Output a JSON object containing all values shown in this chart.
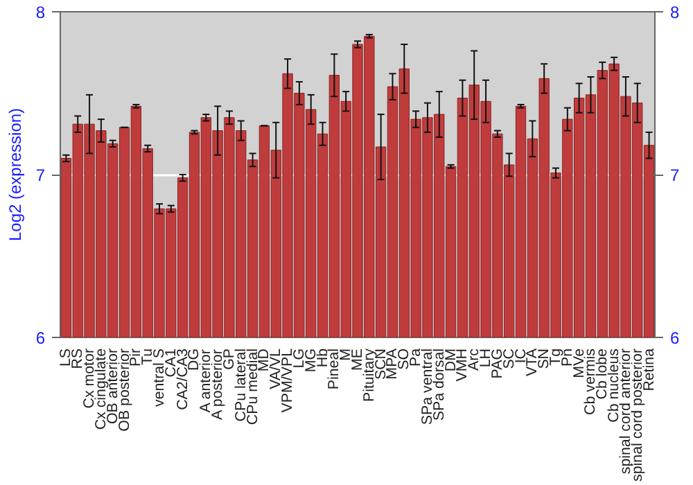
{
  "chart_data": {
    "type": "bar",
    "ylabel": "Log2 (expression)",
    "categories": [
      "LS",
      "RS",
      "Cx motor",
      "Cx cingulate",
      "OB anterior",
      "OB posterior",
      "Pir",
      "Tu",
      "ventral S",
      "CA1",
      "CA2/CA3",
      "DG",
      "A anterior",
      "A posterior",
      "GP",
      "CPu lateral",
      "CPu medial",
      "MD",
      "VA/VL",
      "VPM/VPL",
      "LG",
      "MG",
      "Hb",
      "Pineal",
      "M",
      "ME",
      "Pituitary",
      "SCN",
      "MPA",
      "SO",
      "Pa",
      "SPa ventral",
      "SPa dorsal",
      "DM",
      "VMH",
      "Arc",
      "LH",
      "PAG",
      "SC",
      "IC",
      "VTA",
      "SN",
      "Tg",
      "Pn",
      "MVe",
      "Cb vermis",
      "Cb lobe",
      "Cb nucleus",
      "spinal cord anterior",
      "spinal cord posterior",
      "Retina"
    ],
    "values": [
      7.1,
      7.31,
      7.31,
      7.27,
      7.19,
      7.29,
      7.42,
      7.16,
      6.79,
      6.79,
      6.98,
      7.26,
      7.35,
      7.27,
      7.35,
      7.27,
      7.09,
      7.3,
      7.15,
      7.62,
      7.5,
      7.4,
      7.25,
      7.61,
      7.45,
      7.8,
      7.85,
      7.17,
      7.54,
      7.65,
      7.34,
      7.35,
      7.37,
      7.05,
      7.47,
      7.55,
      7.45,
      7.25,
      7.06,
      7.42,
      7.22,
      7.59,
      7.01,
      7.34,
      7.47,
      7.49,
      7.64,
      7.68,
      7.48,
      7.44,
      7.18
    ],
    "errors": [
      0.02,
      0.05,
      0.18,
      0.07,
      0.02,
      0,
      0.01,
      0.02,
      0.03,
      0.02,
      0.02,
      0.01,
      0.02,
      0.15,
      0.04,
      0.06,
      0.04,
      0,
      0.17,
      0.09,
      0.07,
      0.09,
      0.07,
      0.13,
      0.06,
      0.02,
      0.01,
      0.2,
      0.08,
      0.15,
      0.05,
      0.09,
      0.14,
      0.01,
      0.11,
      0.21,
      0.13,
      0.02,
      0.07,
      0.01,
      0.11,
      0.09,
      0.03,
      0.07,
      0.09,
      0.11,
      0.05,
      0.04,
      0.12,
      0.12,
      0.08
    ],
    "color": "#c03c3c",
    "ylim": [
      6,
      8
    ],
    "yticks": [
      6,
      7,
      8
    ],
    "y2lim": [
      6,
      8
    ],
    "y2ticks": [
      6,
      7,
      8
    ],
    "grid": "y"
  }
}
